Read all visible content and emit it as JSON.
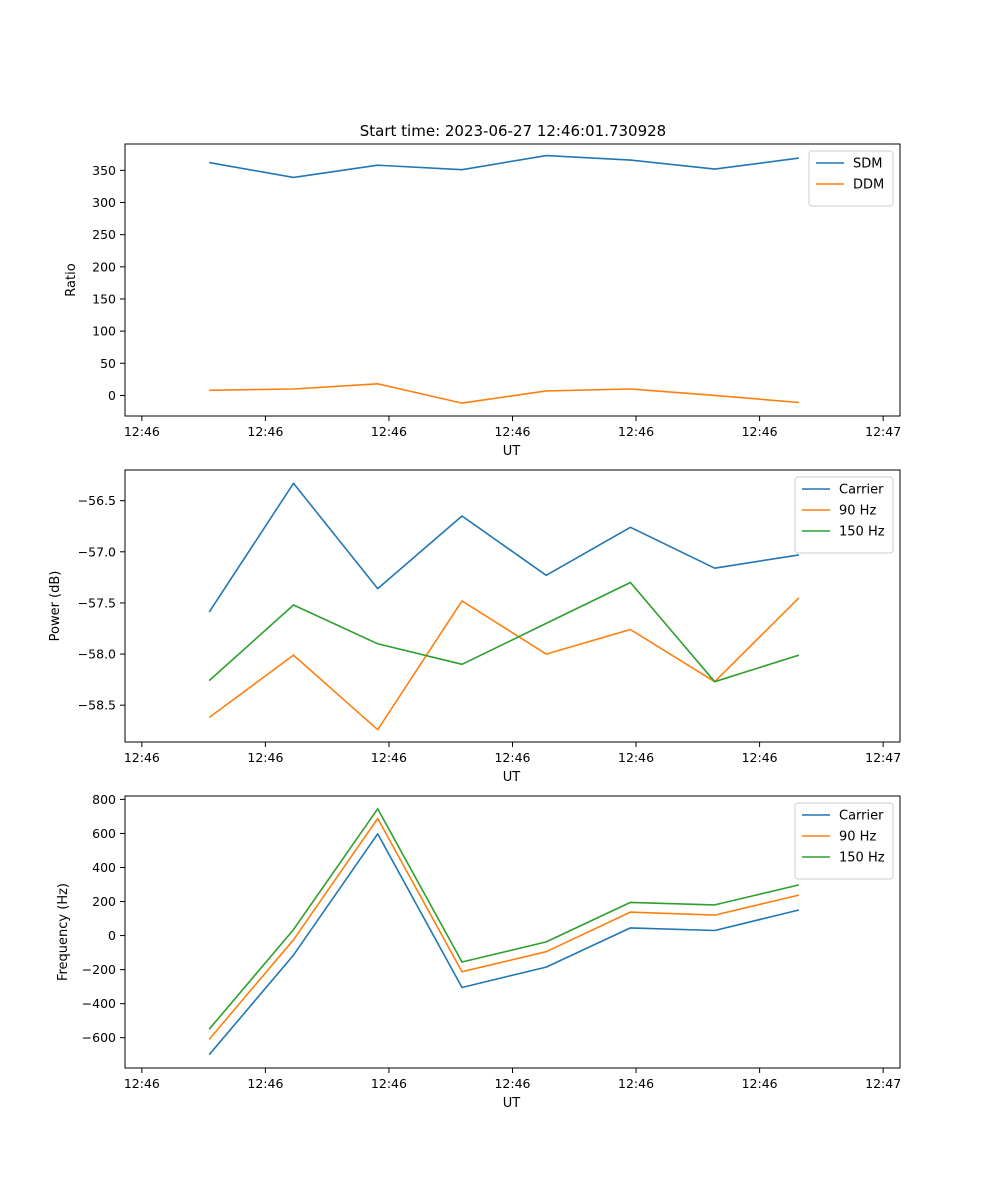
{
  "title": "Start time: 2023-06-27 12:46:01.730928",
  "chart_data": [
    {
      "type": "line",
      "x": [
        "12:46:02.7",
        "12:46:03.7",
        "12:46:04.7",
        "12:46:05.7",
        "12:46:06.7",
        "12:46:07.7",
        "12:46:08.7",
        "12:46:09.7"
      ],
      "xticks": [
        "12:46",
        "12:46",
        "12:46",
        "12:46",
        "12:46",
        "12:46",
        "12:47"
      ],
      "xlim": [
        0,
        9.2
      ],
      "xlabel": "UT",
      "ylabel": "Ratio",
      "ylim": [
        -32,
        391
      ],
      "yticks": [
        0,
        50,
        100,
        150,
        200,
        250,
        300,
        350
      ],
      "legend": "top-right",
      "series": [
        {
          "name": "SDM",
          "color": "#1f77b4",
          "values": [
            362,
            339,
            358,
            351,
            373,
            366,
            352,
            369
          ]
        },
        {
          "name": "DDM",
          "color": "#ff7f0e",
          "values": [
            8,
            10,
            18,
            -12,
            7,
            10,
            0,
            -11
          ]
        }
      ]
    },
    {
      "type": "line",
      "x": [
        "12:46:02.7",
        "12:46:03.7",
        "12:46:04.7",
        "12:46:05.7",
        "12:46:06.7",
        "12:46:07.7",
        "12:46:08.7",
        "12:46:09.7"
      ],
      "xticks": [
        "12:46",
        "12:46",
        "12:46",
        "12:46",
        "12:46",
        "12:46",
        "12:47"
      ],
      "xlim": [
        0,
        9.2
      ],
      "xlabel": "UT",
      "ylabel": "Power (dB)",
      "ylim": [
        -58.86,
        -56.2
      ],
      "yticks": [
        -58.5,
        -58.0,
        -57.5,
        -57.0,
        -56.5
      ],
      "yticklabels": [
        "−58.5",
        "−58.0",
        "−57.5",
        "−57.0",
        "−56.5"
      ],
      "legend": "top-right",
      "series": [
        {
          "name": "Carrier",
          "color": "#1f77b4",
          "values": [
            -57.59,
            -56.33,
            -57.36,
            -56.65,
            -57.23,
            -56.76,
            -57.16,
            -57.03
          ]
        },
        {
          "name": "90 Hz",
          "color": "#ff7f0e",
          "values": [
            -58.62,
            -58.01,
            -58.74,
            -57.48,
            -58.0,
            -57.76,
            -58.27,
            -57.45
          ]
        },
        {
          "name": "150 Hz",
          "color": "#2ca02c",
          "values": [
            -58.26,
            -57.52,
            -57.9,
            -58.1,
            -57.7,
            -57.3,
            -58.27,
            -58.01
          ]
        }
      ]
    },
    {
      "type": "line",
      "x": [
        "12:46:02.7",
        "12:46:03.7",
        "12:46:04.7",
        "12:46:05.7",
        "12:46:06.7",
        "12:46:07.7",
        "12:46:08.7",
        "12:46:09.7"
      ],
      "xticks": [
        "12:46",
        "12:46",
        "12:46",
        "12:46",
        "12:46",
        "12:46",
        "12:47"
      ],
      "xlim": [
        0,
        9.2
      ],
      "xlabel": "UT",
      "ylabel": "Frequency (Hz)",
      "ylim": [
        -778,
        820
      ],
      "yticks": [
        -600,
        -400,
        -200,
        0,
        200,
        400,
        600,
        800
      ],
      "yticklabels": [
        "−600",
        "−400",
        "−200",
        "0",
        "200",
        "400",
        "600",
        "800"
      ],
      "legend": "top-right",
      "series": [
        {
          "name": "Carrier",
          "color": "#1f77b4",
          "values": [
            -700,
            -115,
            598,
            -305,
            -185,
            45,
            30,
            150
          ]
        },
        {
          "name": "90 Hz",
          "color": "#ff7f0e",
          "values": [
            -610,
            -25,
            688,
            -212,
            -95,
            138,
            120,
            238
          ]
        },
        {
          "name": "150 Hz",
          "color": "#2ca02c",
          "values": [
            -550,
            35,
            745,
            -155,
            -37,
            195,
            180,
            298
          ]
        }
      ]
    }
  ]
}
